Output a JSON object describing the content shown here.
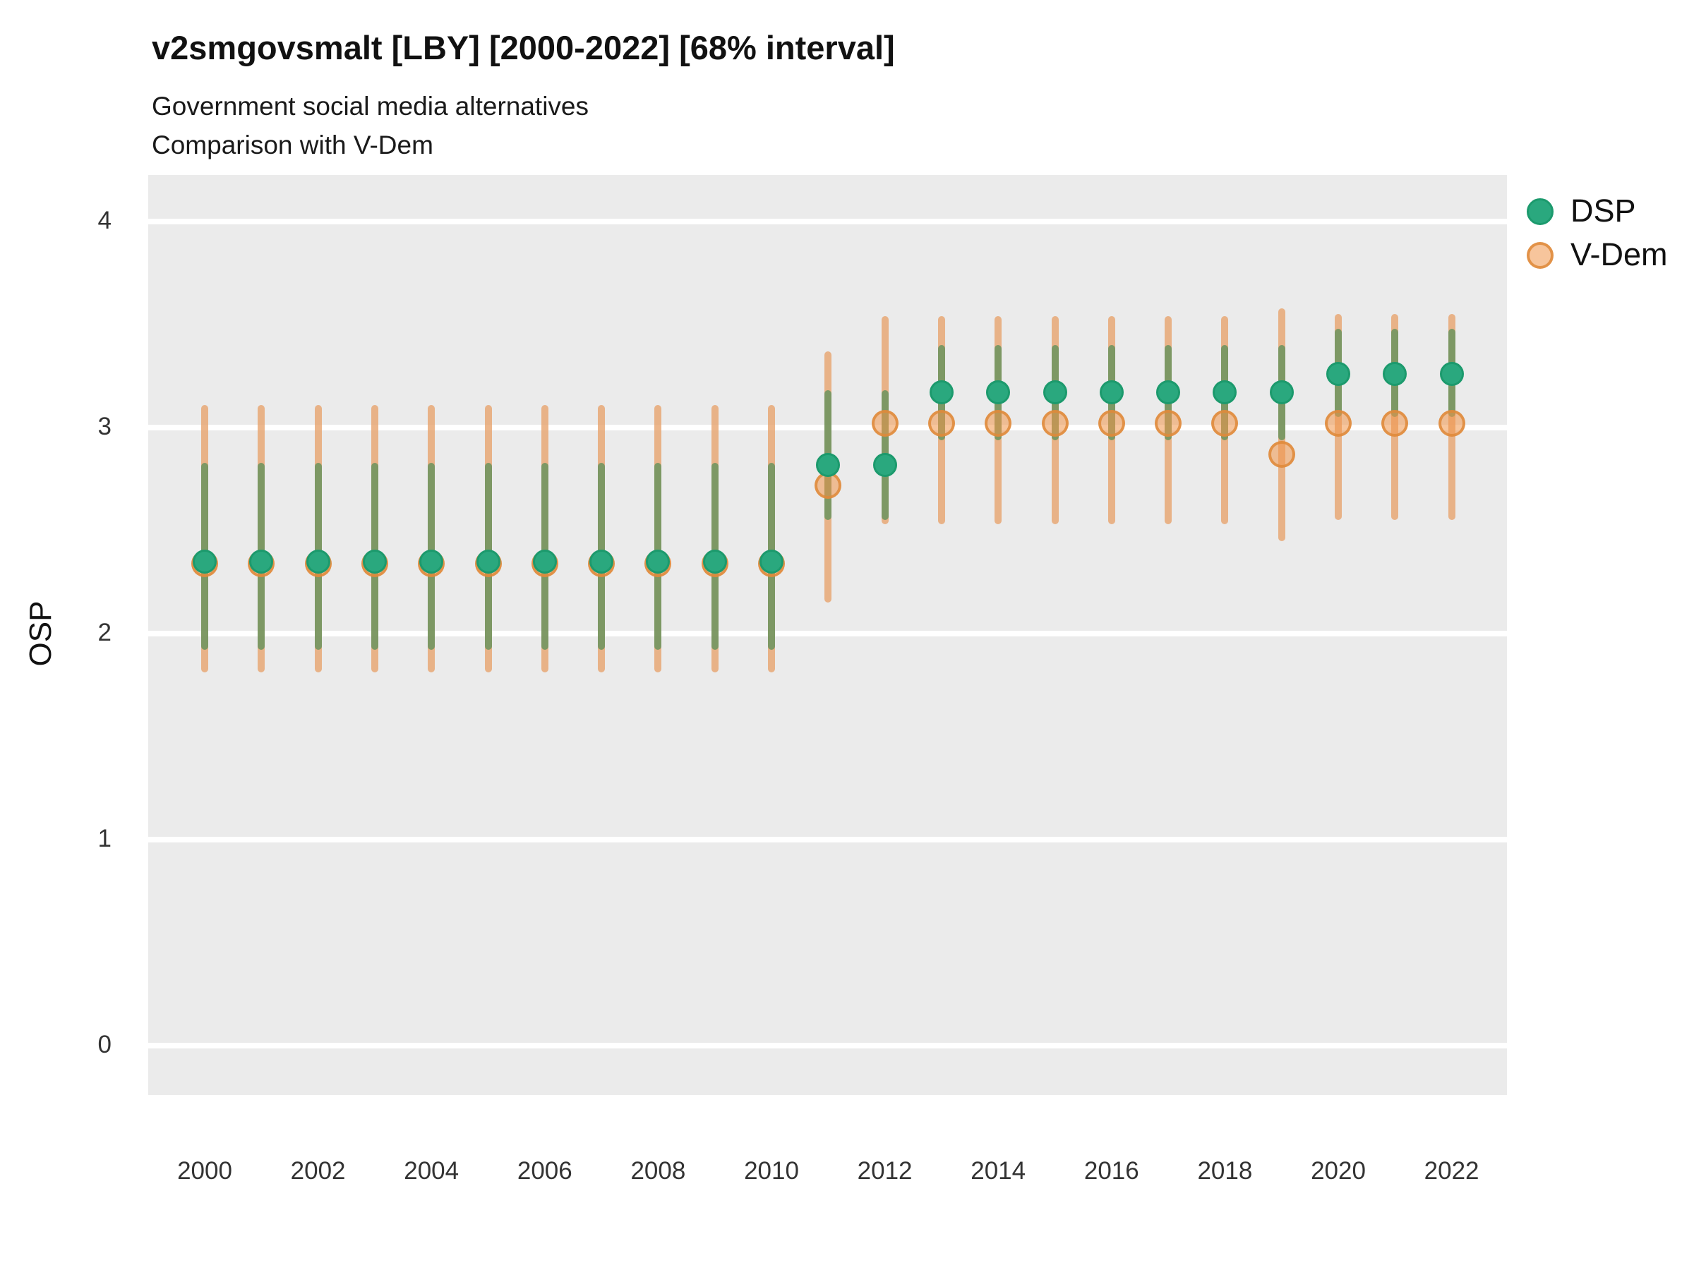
{
  "chart_data": {
    "type": "pointrange",
    "title": "v2smgovsmalt [LBY] [2000-2022] [68% interval]",
    "subtitle": [
      "Government social media alternatives",
      "Comparison with V-Dem"
    ],
    "ylabel": "OSP",
    "xlabel": "",
    "ylim": [
      -0.27,
      4.25
    ],
    "yticks": [
      0,
      1,
      2,
      3,
      4
    ],
    "xticks": [
      2000,
      2002,
      2004,
      2006,
      2008,
      2010,
      2012,
      2014,
      2016,
      2018,
      2020,
      2022
    ],
    "grid": "horizontal white major gridlines on gray panel",
    "legend_position": "top-right",
    "interval_note": "68% interval",
    "panel_bg_color": "#EBEBEB",
    "years": [
      2000,
      2001,
      2002,
      2003,
      2004,
      2005,
      2006,
      2007,
      2008,
      2009,
      2010,
      2011,
      2012,
      2013,
      2014,
      2015,
      2016,
      2017,
      2018,
      2019,
      2020,
      2021,
      2022
    ],
    "series": [
      {
        "name": "DSP",
        "point_color": "#2aa87e",
        "point_edge_color": "#1c9a6d",
        "bar_color": "rgba(90,143,88,0.75)",
        "points": [
          2.35,
          2.35,
          2.35,
          2.35,
          2.35,
          2.35,
          2.35,
          2.35,
          2.35,
          2.35,
          2.35,
          2.82,
          2.82,
          3.17,
          3.17,
          3.17,
          3.17,
          3.17,
          3.17,
          3.17,
          3.26,
          3.26,
          3.26
        ],
        "lo": [
          1.92,
          1.92,
          1.92,
          1.92,
          1.92,
          1.92,
          1.92,
          1.92,
          1.92,
          1.92,
          1.92,
          2.55,
          2.55,
          2.94,
          2.94,
          2.94,
          2.94,
          2.94,
          2.94,
          2.94,
          3.05,
          3.05,
          3.05
        ],
        "hi": [
          2.83,
          2.83,
          2.83,
          2.83,
          2.83,
          2.83,
          2.83,
          2.83,
          2.83,
          2.83,
          2.83,
          3.18,
          3.18,
          3.4,
          3.4,
          3.4,
          3.4,
          3.4,
          3.4,
          3.4,
          3.48,
          3.48,
          3.48
        ]
      },
      {
        "name": "V-Dem",
        "point_color": "rgba(240,150,75,0.55)",
        "point_edge_color": "rgba(222,138,58,0.85)",
        "bar_color": "rgba(231,164,110,0.8)",
        "points": [
          2.34,
          2.34,
          2.34,
          2.34,
          2.34,
          2.34,
          2.34,
          2.34,
          2.34,
          2.34,
          2.34,
          2.72,
          3.02,
          3.02,
          3.02,
          3.02,
          3.02,
          3.02,
          3.02,
          2.87,
          3.02,
          3.02,
          3.02
        ],
        "lo": [
          1.81,
          1.81,
          1.81,
          1.81,
          1.81,
          1.81,
          1.81,
          1.81,
          1.81,
          1.81,
          1.81,
          2.15,
          2.53,
          2.53,
          2.53,
          2.53,
          2.53,
          2.53,
          2.53,
          2.45,
          2.55,
          2.55,
          2.55
        ],
        "hi": [
          3.11,
          3.11,
          3.11,
          3.11,
          3.11,
          3.11,
          3.11,
          3.11,
          3.11,
          3.11,
          3.11,
          3.37,
          3.54,
          3.54,
          3.54,
          3.54,
          3.54,
          3.54,
          3.54,
          3.58,
          3.55,
          3.55,
          3.55
        ]
      }
    ]
  }
}
